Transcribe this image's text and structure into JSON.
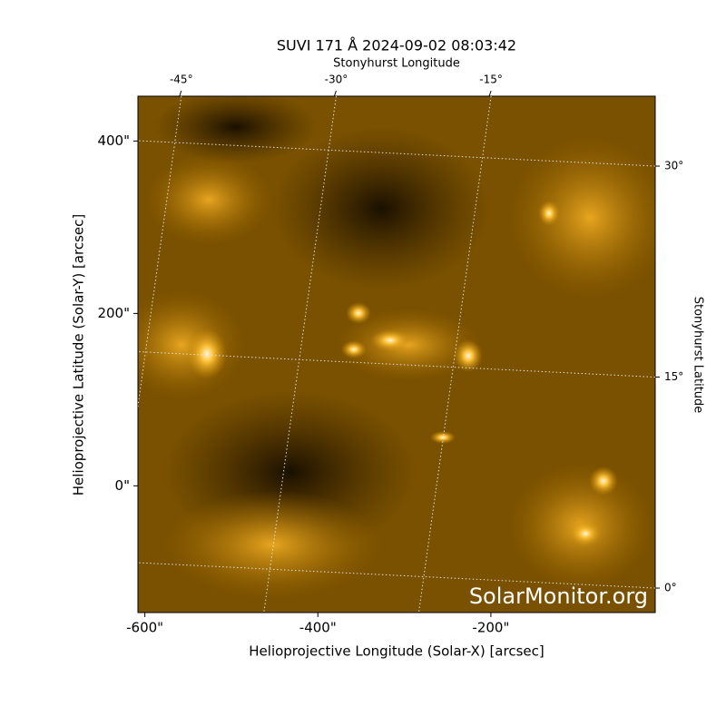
{
  "chart_data": {
    "type": "image",
    "title": "SUVI 171 Å 2024-09-02 08:03:42",
    "x_label": "Helioprojective Longitude (Solar-X) [arcsec]",
    "y_label": "Helioprojective Latitude (Solar-Y) [arcsec]",
    "x2_label": "Stonyhurst Longitude",
    "y2_label": "Stonyhurst Latitude",
    "watermark": "SolarMonitor.org",
    "xlim": [
      -608,
      -10
    ],
    "ylim": [
      -147,
      452
    ],
    "xticks": [
      {
        "value": -600,
        "label": "-600\""
      },
      {
        "value": -400,
        "label": "-400\""
      },
      {
        "value": -200,
        "label": "-200\""
      }
    ],
    "yticks": [
      {
        "value": 0,
        "label": "0\""
      },
      {
        "value": 200,
        "label": "200\""
      },
      {
        "value": 400,
        "label": "400\""
      }
    ],
    "x2lim": [
      -49.2,
      0.9
    ],
    "x2ticks": [
      {
        "value": -45,
        "label": "-45°"
      },
      {
        "value": -30,
        "label": "-30°"
      },
      {
        "value": -15,
        "label": "-15°"
      }
    ],
    "y2lim": [
      -1.74,
      34.97
    ],
    "y2ticks": [
      {
        "value": 0,
        "label": "0°"
      },
      {
        "value": 15,
        "label": "15°"
      },
      {
        "value": 30,
        "label": "30°"
      }
    ],
    "grid": true
  }
}
